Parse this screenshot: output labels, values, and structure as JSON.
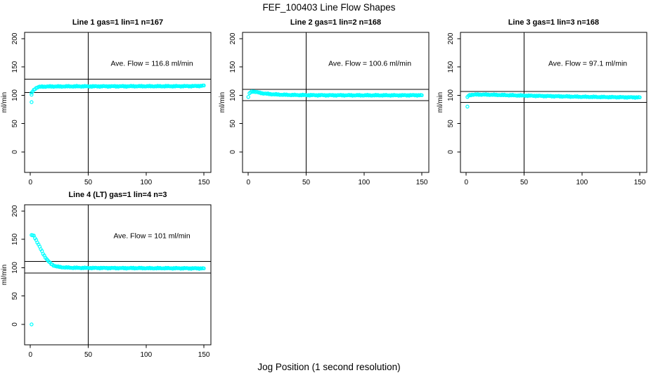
{
  "header": {
    "title": "FEF_100403  Line Flow Shapes"
  },
  "footer": {
    "x_axis_label": "Jog Position (1 second resolution)"
  },
  "colors": {
    "marker": "#00FFFF",
    "axis": "#000000",
    "background": "#ffffff"
  },
  "chart_data": [
    {
      "type": "scatter",
      "title": "Line 1 gas=1 lin=1 n=167",
      "annotation": "Ave. Flow =  116.8  ml/min",
      "ave_flow_ml_min": 116.8,
      "n": 167,
      "ylabel": "ml/min",
      "x_ticks": [
        0,
        50,
        100,
        150
      ],
      "y_ticks": [
        0,
        50,
        100,
        150,
        200
      ],
      "xlim": [
        -5,
        156
      ],
      "ylim": [
        -36,
        211
      ],
      "vline_x": 50,
      "ref_lines": [
        128.5,
        105.1
      ],
      "grid": false,
      "marker": "open-circle",
      "marker_color": "#00FFFF",
      "annotation_pos": [
        105,
        152
      ],
      "outliers": [
        [
          1,
          88
        ],
        [
          1,
          101
        ]
      ],
      "points": [
        [
          1,
          104
        ],
        [
          2,
          107
        ],
        [
          3,
          109.5
        ],
        [
          4,
          111.5
        ],
        [
          5,
          113
        ],
        [
          6,
          114
        ],
        [
          7,
          114.6
        ],
        [
          8,
          115
        ],
        [
          10,
          115.3
        ],
        [
          12,
          115.4
        ],
        [
          15,
          115.5
        ],
        [
          20,
          115.6
        ],
        [
          25,
          115.6
        ],
        [
          30,
          115.7
        ],
        [
          40,
          115.8
        ],
        [
          50,
          115.8
        ],
        [
          60,
          115.8
        ],
        [
          70,
          115.9
        ],
        [
          80,
          115.9
        ],
        [
          90,
          116
        ],
        [
          100,
          116
        ],
        [
          110,
          116
        ],
        [
          120,
          116
        ],
        [
          130,
          116.1
        ],
        [
          140,
          116.2
        ],
        [
          145,
          116.4
        ],
        [
          148,
          116.9
        ],
        [
          150,
          117.3
        ]
      ]
    },
    {
      "type": "scatter",
      "title": "Line 2 gas=1 lin=2 n=168",
      "annotation": "Ave. Flow =  100.6  ml/min",
      "ave_flow_ml_min": 100.6,
      "n": 168,
      "ylabel": "ml/min",
      "x_ticks": [
        0,
        50,
        100,
        150
      ],
      "y_ticks": [
        0,
        50,
        100,
        150,
        200
      ],
      "xlim": [
        -5,
        156
      ],
      "ylim": [
        -36,
        211
      ],
      "vline_x": 50,
      "ref_lines": [
        110.7,
        90.5
      ],
      "grid": false,
      "marker": "open-circle",
      "marker_color": "#00FFFF",
      "annotation_pos": [
        105,
        152
      ],
      "outliers": [
        [
          0,
          97
        ]
      ],
      "points": [
        [
          1,
          103
        ],
        [
          2,
          105.5
        ],
        [
          3,
          106.6
        ],
        [
          4,
          106.8
        ],
        [
          5,
          106.6
        ],
        [
          6,
          106.2
        ],
        [
          7,
          105.7
        ],
        [
          8,
          105.2
        ],
        [
          10,
          104.4
        ],
        [
          12,
          103.7
        ],
        [
          15,
          102.9
        ],
        [
          18,
          102.3
        ],
        [
          20,
          102
        ],
        [
          25,
          101.4
        ],
        [
          30,
          101
        ],
        [
          35,
          100.7
        ],
        [
          40,
          100.5
        ],
        [
          50,
          100.3
        ],
        [
          60,
          100.2
        ],
        [
          70,
          100.1
        ],
        [
          80,
          100.1
        ],
        [
          90,
          100
        ],
        [
          100,
          100
        ],
        [
          110,
          100
        ],
        [
          120,
          100
        ],
        [
          130,
          100
        ],
        [
          140,
          100.1
        ],
        [
          150,
          100.2
        ]
      ]
    },
    {
      "type": "scatter",
      "title": "Line 3 gas=1 lin=3 n=168",
      "annotation": "Ave. Flow =  97.1  ml/min",
      "ave_flow_ml_min": 97.1,
      "n": 168,
      "ylabel": "ml/min",
      "x_ticks": [
        0,
        50,
        100,
        150
      ],
      "y_ticks": [
        0,
        50,
        100,
        150,
        200
      ],
      "xlim": [
        -5,
        156
      ],
      "ylim": [
        -36,
        211
      ],
      "vline_x": 50,
      "ref_lines": [
        106.8,
        87.4
      ],
      "grid": false,
      "marker": "open-circle",
      "marker_color": "#00FFFF",
      "annotation_pos": [
        105,
        152
      ],
      "outliers": [
        [
          1,
          80
        ],
        [
          1,
          97
        ]
      ],
      "points": [
        [
          2,
          99.5
        ],
        [
          3,
          100.3
        ],
        [
          4,
          100.7
        ],
        [
          5,
          101
        ],
        [
          6,
          101.1
        ],
        [
          8,
          101.2
        ],
        [
          10,
          101.3
        ],
        [
          12,
          101.3
        ],
        [
          15,
          101.2
        ],
        [
          18,
          101.1
        ],
        [
          20,
          101
        ],
        [
          25,
          100.8
        ],
        [
          30,
          100.5
        ],
        [
          35,
          100.3
        ],
        [
          40,
          100
        ],
        [
          45,
          99.8
        ],
        [
          50,
          99.5
        ],
        [
          55,
          99.3
        ],
        [
          60,
          99.1
        ],
        [
          70,
          98.6
        ],
        [
          80,
          98.2
        ],
        [
          90,
          97.8
        ],
        [
          100,
          97.4
        ],
        [
          110,
          97.1
        ],
        [
          120,
          96.9
        ],
        [
          130,
          96.7
        ],
        [
          140,
          96.5
        ],
        [
          150,
          96.4
        ]
      ]
    },
    {
      "type": "scatter",
      "title": "Line 4 (LT) gas=1 lin=4 n=3",
      "annotation": "Ave. Flow =  101  ml/min",
      "ave_flow_ml_min": 101,
      "n": 3,
      "ylabel": "ml/min",
      "x_ticks": [
        0,
        50,
        100,
        150
      ],
      "y_ticks": [
        0,
        50,
        100,
        150,
        200
      ],
      "xlim": [
        -5,
        156
      ],
      "ylim": [
        -36,
        211
      ],
      "vline_x": 50,
      "ref_lines": [
        111.1,
        90.9
      ],
      "grid": false,
      "marker": "open-circle",
      "marker_color": "#00FFFF",
      "annotation_pos": [
        105,
        152
      ],
      "outliers": [
        [
          1,
          0
        ]
      ],
      "points": [
        [
          1,
          157
        ],
        [
          2,
          157.5
        ],
        [
          3,
          156.2
        ],
        [
          4,
          152.8
        ],
        [
          5,
          148.8
        ],
        [
          6,
          144.8
        ],
        [
          7,
          140.8
        ],
        [
          8,
          136.8
        ],
        [
          9,
          132.8
        ],
        [
          10,
          128.8
        ],
        [
          11,
          125
        ],
        [
          12,
          121.5
        ],
        [
          13,
          118.3
        ],
        [
          14,
          115.4
        ],
        [
          15,
          112.8
        ],
        [
          16,
          110.5
        ],
        [
          17,
          108.5
        ],
        [
          18,
          106.8
        ],
        [
          19,
          105.3
        ],
        [
          20,
          104.1
        ],
        [
          22,
          102.6
        ],
        [
          24,
          101.7
        ],
        [
          26,
          101.1
        ],
        [
          28,
          100.7
        ],
        [
          30,
          100.4
        ],
        [
          35,
          100
        ],
        [
          40,
          99.8
        ],
        [
          50,
          99.6
        ],
        [
          60,
          99.5
        ],
        [
          70,
          99.4
        ],
        [
          80,
          99.3
        ],
        [
          90,
          99.3
        ],
        [
          100,
          99.2
        ],
        [
          110,
          99.1
        ],
        [
          120,
          99.1
        ],
        [
          130,
          99
        ],
        [
          140,
          98.9
        ],
        [
          150,
          98.8
        ]
      ]
    }
  ]
}
